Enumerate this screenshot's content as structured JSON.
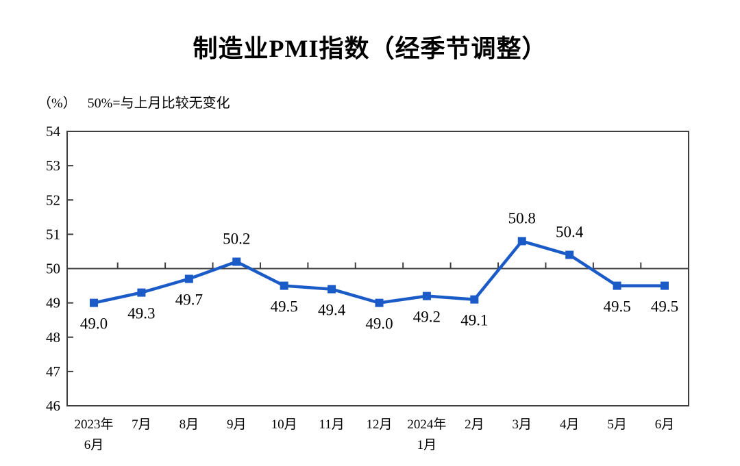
{
  "chart_data": {
    "type": "line",
    "title": "制造业PMI指数（经季节调整）",
    "unit_label": "（%）",
    "note": "50%=与上月比较无变化",
    "categories": [
      [
        "2023年",
        "6月"
      ],
      [
        "7月"
      ],
      [
        "8月"
      ],
      [
        "9月"
      ],
      [
        "10月"
      ],
      [
        "11月"
      ],
      [
        "12月"
      ],
      [
        "2024年",
        "1月"
      ],
      [
        "2月"
      ],
      [
        "3月"
      ],
      [
        "4月"
      ],
      [
        "5月"
      ],
      [
        "6月"
      ]
    ],
    "values": [
      49.0,
      49.3,
      49.7,
      50.2,
      49.5,
      49.4,
      49.0,
      49.2,
      49.1,
      50.8,
      50.4,
      49.5,
      49.5
    ],
    "data_labels": [
      "49.0",
      "49.3",
      "49.7",
      "50.2",
      "49.5",
      "49.4",
      "49.0",
      "49.2",
      "49.1",
      "50.8",
      "50.4",
      "49.5",
      "49.5"
    ],
    "ylim": [
      46,
      54
    ],
    "yticks": [
      46,
      47,
      48,
      49,
      50,
      51,
      52,
      53,
      54
    ],
    "reference_line": 50,
    "grid": false,
    "legend": "none",
    "marker": "square",
    "line_color": "#1A5BC8",
    "axis_color": "#3F3F3F",
    "text_color": "#000000"
  }
}
